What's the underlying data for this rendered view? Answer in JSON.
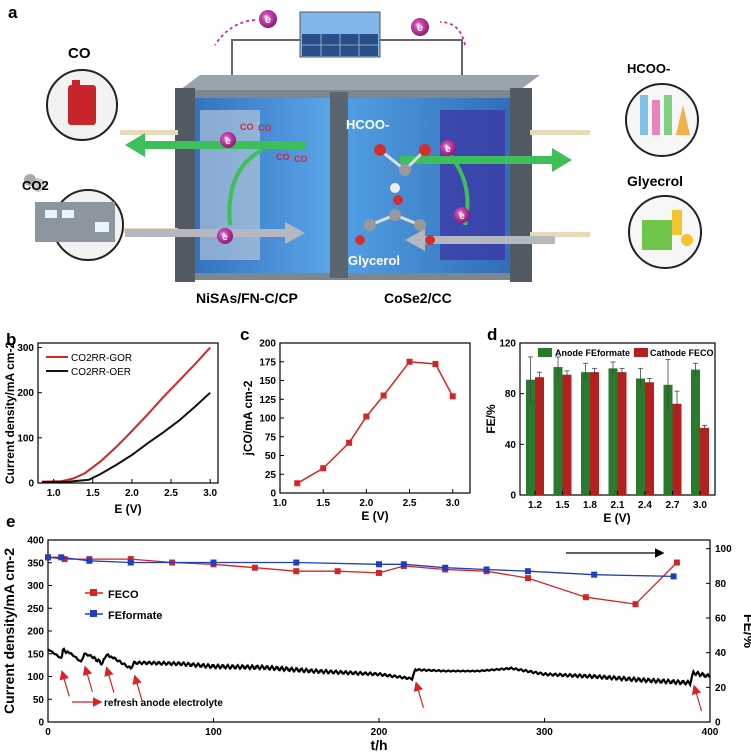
{
  "panel_labels": {
    "a": "a",
    "b": "b",
    "c": "c",
    "d": "d",
    "e": "e"
  },
  "schematic": {
    "electron_symbol": "e",
    "co_label": "CO",
    "co2_label": "CO2",
    "formate_label": "HCOO-",
    "glycerol_product_label": "Glyecrol",
    "glycerol_label": "Glycerol",
    "cathode_label": "NiSAs/FN-C/CP",
    "anode_label": "CoSe2/CC",
    "colors": {
      "tank": "#3a8fd8",
      "arrow_green": "#3fbf5a",
      "electron": "#c02ea0",
      "frame": "#555c66"
    }
  },
  "chart_data": [
    {
      "panel": "b",
      "type": "line",
      "xlabel": "E (V)",
      "ylabel": "Current density/mA cm-2",
      "xlim": [
        0.8,
        3.1
      ],
      "ylim": [
        0,
        310
      ],
      "xticks": [
        "1.0",
        "1.5",
        "2.0",
        "2.5",
        "3.0"
      ],
      "yticks": [
        "0",
        "100",
        "200",
        "300"
      ],
      "legend_position": "top-left",
      "series": [
        {
          "name": "CO2RR-GOR",
          "color": "#d62424",
          "x": [
            0.85,
            1.1,
            1.25,
            1.4,
            1.6,
            1.8,
            2.0,
            2.2,
            2.4,
            2.6,
            2.8,
            3.0
          ],
          "y": [
            3,
            4,
            10,
            22,
            48,
            80,
            115,
            152,
            190,
            226,
            262,
            300
          ]
        },
        {
          "name": "CO2RR-OER",
          "color": "#111111",
          "x": [
            0.85,
            1.2,
            1.45,
            1.6,
            1.8,
            2.0,
            2.2,
            2.4,
            2.6,
            2.8,
            3.0
          ],
          "y": [
            2,
            3,
            7,
            20,
            40,
            62,
            88,
            112,
            138,
            168,
            200
          ]
        }
      ]
    },
    {
      "panel": "c",
      "type": "line",
      "xlabel": "E (V)",
      "ylabel": "jCO/mA cm-2",
      "xlim": [
        1.0,
        3.2
      ],
      "ylim": [
        0,
        200
      ],
      "xticks": [
        "1.0",
        "1.5",
        "2.0",
        "2.5",
        "3.0"
      ],
      "yticks": [
        "0",
        "25",
        "50",
        "75",
        "100",
        "125",
        "150",
        "175",
        "200"
      ],
      "series": [
        {
          "color": "#d62424",
          "x": [
            1.2,
            1.5,
            1.8,
            2.0,
            2.2,
            2.5,
            2.8,
            3.0
          ],
          "y": [
            13,
            33,
            67,
            102,
            130,
            175,
            172,
            129
          ]
        }
      ]
    },
    {
      "panel": "d",
      "type": "bar",
      "xlabel": "E (V)",
      "ylabel": "FE/%",
      "ylim": [
        0,
        120
      ],
      "yticks": [
        "0",
        "40",
        "80",
        "120"
      ],
      "legend_position": "top",
      "categories": [
        "1.2",
        "1.5",
        "1.8",
        "2.1",
        "2.4",
        "2.7",
        "3.0"
      ],
      "series": [
        {
          "name": "Anode FEformate",
          "color": "#2a7a2e",
          "values": [
            91,
            101,
            97,
            100,
            92,
            87,
            99
          ],
          "errors": [
            18,
            8,
            7,
            5,
            8,
            20,
            5
          ]
        },
        {
          "name": "Cathode FECO",
          "color": "#b3201f",
          "values": [
            93,
            95,
            97,
            97,
            89,
            72,
            53
          ],
          "errors": [
            4,
            3,
            3,
            3,
            3,
            10,
            2
          ]
        }
      ]
    },
    {
      "panel": "e",
      "type": "line",
      "xlabel": "t/h",
      "ylabel": "Current density/mA cm-2",
      "ylabel_right": "FE/%",
      "xlim": [
        0,
        400
      ],
      "ylim": [
        0,
        400
      ],
      "ylim_right": [
        0,
        105
      ],
      "xticks": [
        "0",
        "100",
        "200",
        "300",
        "400"
      ],
      "yticks": [
        "0",
        "50",
        "100",
        "150",
        "200",
        "250",
        "300",
        "350",
        "400"
      ],
      "yticks_right": [
        "0",
        "20",
        "40",
        "60",
        "80",
        "100"
      ],
      "annotation": "refresh anode electrolyte",
      "refresh_times": [
        8,
        22,
        35,
        52,
        222,
        390
      ],
      "series": [
        {
          "name": "FECO",
          "color": "#d62424",
          "axis": "right",
          "x": [
            0,
            10,
            25,
            50,
            75,
            100,
            125,
            150,
            175,
            200,
            215,
            240,
            265,
            290,
            325,
            355,
            380
          ],
          "y": [
            95,
            94,
            94,
            94,
            92,
            91,
            89,
            87,
            87,
            86,
            90,
            88,
            87,
            83,
            72,
            68,
            92
          ]
        },
        {
          "name": "FEformate",
          "color": "#1f3fbf",
          "axis": "right",
          "x": [
            0,
            8,
            25,
            50,
            100,
            150,
            200,
            215,
            240,
            265,
            290,
            330,
            378
          ],
          "y": [
            95,
            95,
            93,
            92,
            92,
            92,
            91,
            91,
            89,
            88,
            87,
            85,
            84
          ]
        },
        {
          "name": "current",
          "color": "#000000",
          "axis": "left",
          "x": [
            0,
            2,
            8,
            9,
            14,
            20,
            22,
            26,
            33,
            35,
            40,
            50,
            52,
            58,
            80,
            100,
            130,
            160,
            200,
            220,
            222,
            240,
            260,
            280,
            300,
            330,
            360,
            388,
            390,
            400
          ],
          "y": [
            160,
            155,
            140,
            158,
            150,
            132,
            150,
            145,
            128,
            148,
            140,
            118,
            130,
            130,
            128,
            122,
            120,
            112,
            105,
            95,
            115,
            112,
            112,
            118,
            105,
            100,
            92,
            86,
            108,
            100
          ]
        }
      ]
    }
  ]
}
